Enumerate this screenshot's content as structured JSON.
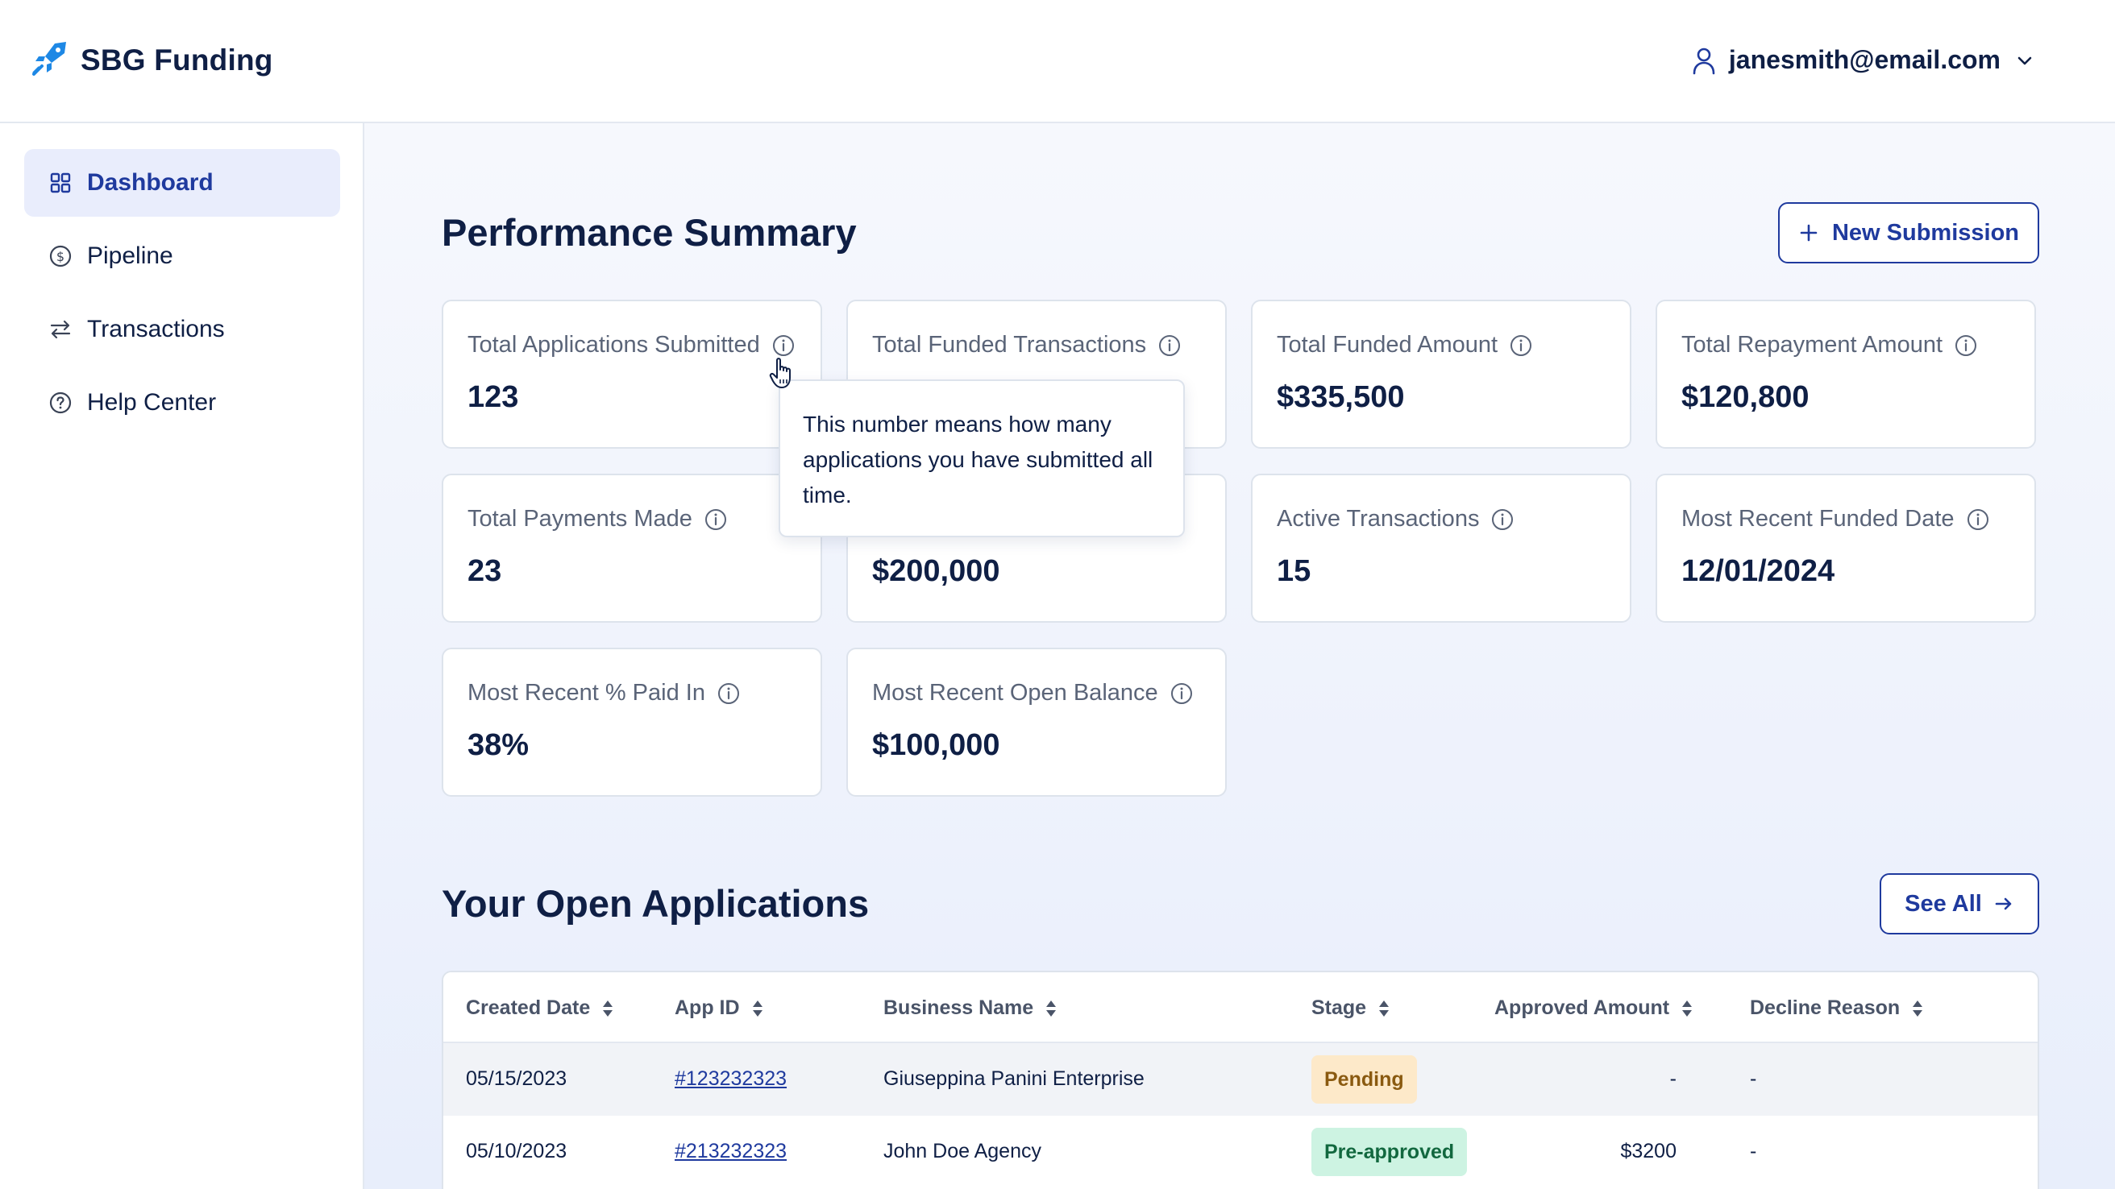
{
  "brand": {
    "name": "SBG Funding",
    "accent": "#1f3a9e",
    "logo_color": "#1e88e5"
  },
  "user": {
    "email": "janesmith@email.com"
  },
  "sidebar": {
    "items": [
      {
        "label": "Dashboard",
        "icon": "grid-icon",
        "active": true
      },
      {
        "label": "Pipeline",
        "icon": "dollar-circle-icon",
        "active": false
      },
      {
        "label": "Transactions",
        "icon": "arrows-swap-icon",
        "active": false
      },
      {
        "label": "Help Center",
        "icon": "question-circle-icon",
        "active": false
      }
    ]
  },
  "performance": {
    "title": "Performance Summary",
    "new_submission_label": "New Submission",
    "cards": [
      {
        "label": "Total Applications Submitted",
        "value": "123"
      },
      {
        "label": "Total Funded Transactions",
        "value": ""
      },
      {
        "label": "Total Funded Amount",
        "value": "$335,500"
      },
      {
        "label": "Total Repayment Amount",
        "value": "$120,800"
      },
      {
        "label": "Total Payments Made",
        "value": "23"
      },
      {
        "label": "",
        "value": "$200,000"
      },
      {
        "label": "Active Transactions",
        "value": "15"
      },
      {
        "label": "Most Recent Funded Date",
        "value": "12/01/2024"
      },
      {
        "label": "Most Recent % Paid In",
        "value": "38%"
      },
      {
        "label": "Most Recent Open Balance",
        "value": "$100,000"
      }
    ],
    "tooltip": "This number means how many applications you have submitted all time."
  },
  "applications": {
    "title": "Your Open Applications",
    "see_all_label": "See All",
    "columns": [
      "Created Date",
      "App ID",
      "Business Name",
      "Stage",
      "Approved Amount",
      "Decline Reason"
    ],
    "rows": [
      {
        "created": "05/15/2023",
        "app_id": "#123232323",
        "business": "Giuseppina Panini Enterprise",
        "stage": "Pending",
        "approved": "-",
        "decline": "-"
      },
      {
        "created": "05/10/2023",
        "app_id": "#213232323",
        "business": "John Doe Agency",
        "stage": "Pre-approved",
        "approved": "$3200",
        "decline": "-"
      }
    ]
  }
}
